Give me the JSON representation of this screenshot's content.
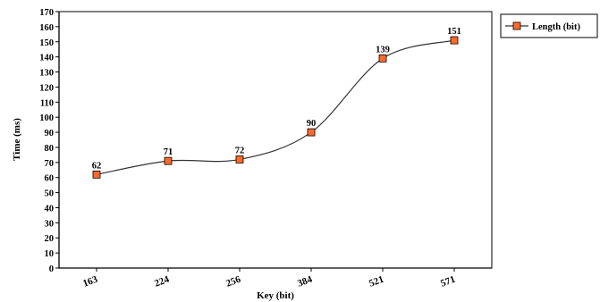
{
  "chart_data": {
    "type": "line",
    "title": "",
    "xlabel": "Key (bit)",
    "ylabel": "Time (ms)",
    "categories": [
      "163",
      "224",
      "256",
      "384",
      "521",
      "571"
    ],
    "series": [
      {
        "name": "Length (bit)",
        "values": [
          62,
          71,
          72,
          90,
          139,
          151
        ],
        "color": "#ff6a2a",
        "marker": "square",
        "line_color": "#333333",
        "smooth": true
      }
    ],
    "ylim": [
      0,
      170
    ],
    "ytick_step": 10,
    "yticks": [
      "0",
      "10",
      "20",
      "30",
      "40",
      "50",
      "60",
      "70",
      "80",
      "90",
      "100",
      "110",
      "120",
      "130",
      "140",
      "150",
      "160",
      "170"
    ],
    "data_labels": true,
    "grid": false,
    "legend": {
      "position": "top-right",
      "border": true
    }
  }
}
